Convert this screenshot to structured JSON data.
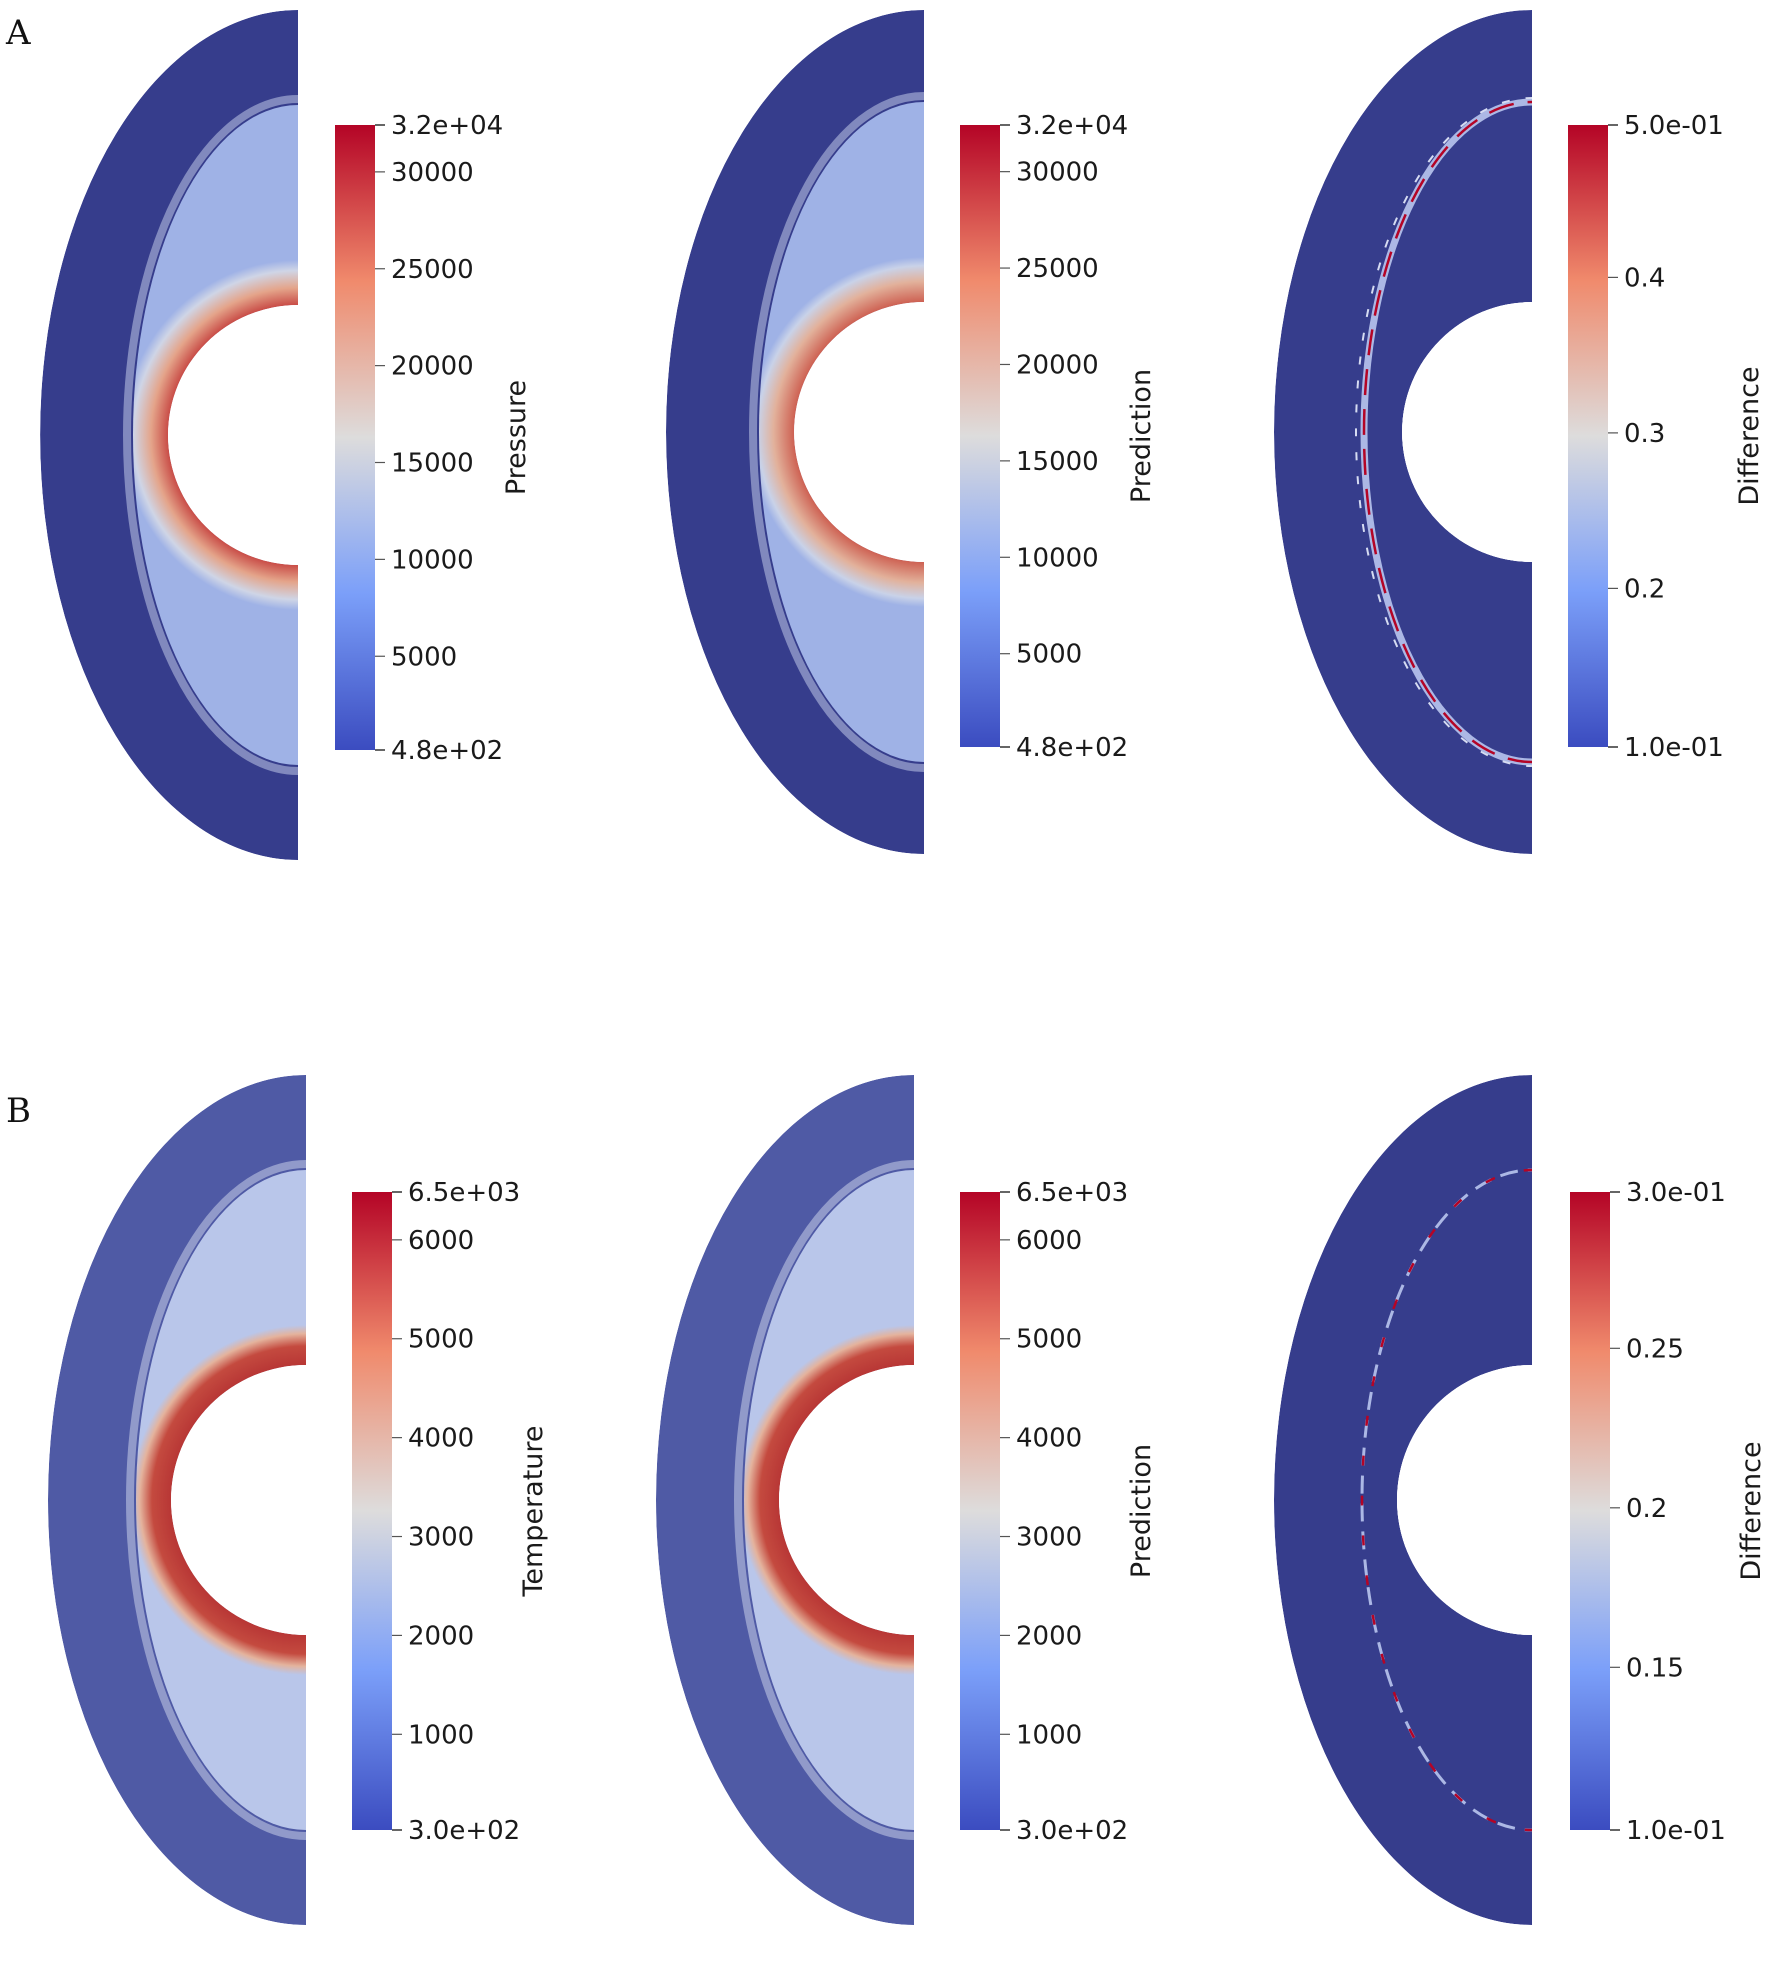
{
  "figure": {
    "background": "#ffffff",
    "field_base_color": "#363d8c",
    "colormap": [
      "#3b4cc0",
      "#6f92f3",
      "#aac7fd",
      "#dddcdc",
      "#f6b194",
      "#e16852",
      "#b40426",
      "#8b0a1e"
    ],
    "panels": [
      {
        "letter": "A",
        "plots": [
          {
            "kind": "pressure",
            "bar_title": "Pressure",
            "bar_max": "3.2e+04",
            "bar_min": "4.8e+02",
            "ticks": [
              "30000",
              "25000",
              "20000",
              "15000",
              "10000",
              "5000"
            ]
          },
          {
            "kind": "pressure-pred",
            "bar_title": "Prediction",
            "bar_max": "3.2e+04",
            "bar_min": "4.8e+02",
            "ticks": [
              "30000",
              "25000",
              "20000",
              "15000",
              "10000",
              "5000"
            ]
          },
          {
            "kind": "diff-a",
            "bar_title": "Difference",
            "bar_max": "5.0e-01",
            "bar_min": "1.0e-01",
            "ticks": [
              "0.4",
              "0.3",
              "0.2"
            ]
          }
        ]
      },
      {
        "letter": "B",
        "plots": [
          {
            "kind": "temperature",
            "bar_title": "Temperature",
            "bar_max": "6.5e+03",
            "bar_min": "3.0e+02",
            "ticks": [
              "6000",
              "5000",
              "4000",
              "3000",
              "2000",
              "1000"
            ]
          },
          {
            "kind": "temperature-pred",
            "bar_title": "Prediction",
            "bar_max": "6.5e+03",
            "bar_min": "3.0e+02",
            "ticks": [
              "6000",
              "5000",
              "4000",
              "3000",
              "2000",
              "1000"
            ]
          },
          {
            "kind": "diff-b",
            "bar_title": "Difference",
            "bar_max": "3.0e-01",
            "bar_min": "1.0e-01",
            "ticks": [
              "0.25",
              "0.2",
              "0.15"
            ]
          }
        ]
      }
    ]
  }
}
